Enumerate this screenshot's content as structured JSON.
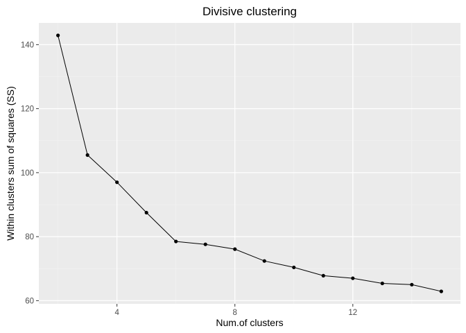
{
  "chart_data": {
    "type": "line",
    "title": "Divisive clustering",
    "xlabel": "Num.of clusters",
    "ylabel": "Within clusters sum of squares (SS)",
    "x": [
      2,
      3,
      4,
      5,
      6,
      7,
      8,
      9,
      10,
      11,
      12,
      13,
      14,
      15
    ],
    "series": [
      {
        "values": [
          142.9,
          105.5,
          97.0,
          87.5,
          78.5,
          77.6,
          76.1,
          72.4,
          70.4,
          67.8,
          67.0,
          65.4,
          65.0,
          62.9
        ]
      }
    ],
    "xlim": [
      1.35,
      15.65
    ],
    "ylim": [
      59.0,
      146.8
    ],
    "x_ticks": [
      4,
      8,
      12
    ],
    "y_ticks": [
      60,
      80,
      100,
      120,
      140
    ],
    "x_tick_labels": [
      "4",
      "8",
      "12"
    ],
    "y_tick_labels": [
      "60",
      "80",
      "100",
      "120",
      "140"
    ],
    "grid": true,
    "legend": "none",
    "colors": {
      "panel_background": "#ebebeb",
      "grid_major": "#ffffff",
      "grid_minor": "#f4f4f4",
      "line": "#000000",
      "point": "#000000"
    }
  }
}
